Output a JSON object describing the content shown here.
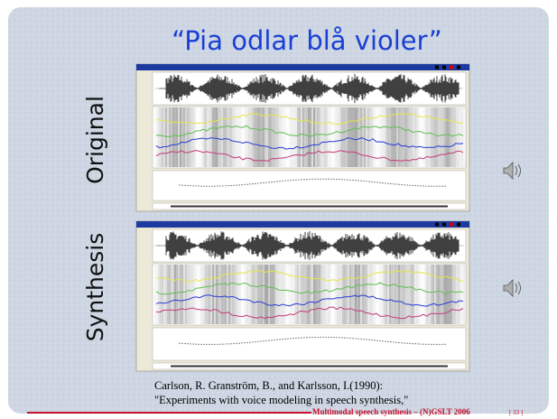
{
  "title": "“Pia odlar blå violer”",
  "labels": [
    "Original",
    "Synthesis"
  ],
  "citation": [
    "Carlson, R. Granström, B., and Karlsson, I.(1990):",
    "\"Experiments with voice modeling in speech synthesis,\""
  ],
  "footer": {
    "text": "Multimodal  speech synthesis – (N)GSLT 2006",
    "page": "[ 33 ]"
  }
}
